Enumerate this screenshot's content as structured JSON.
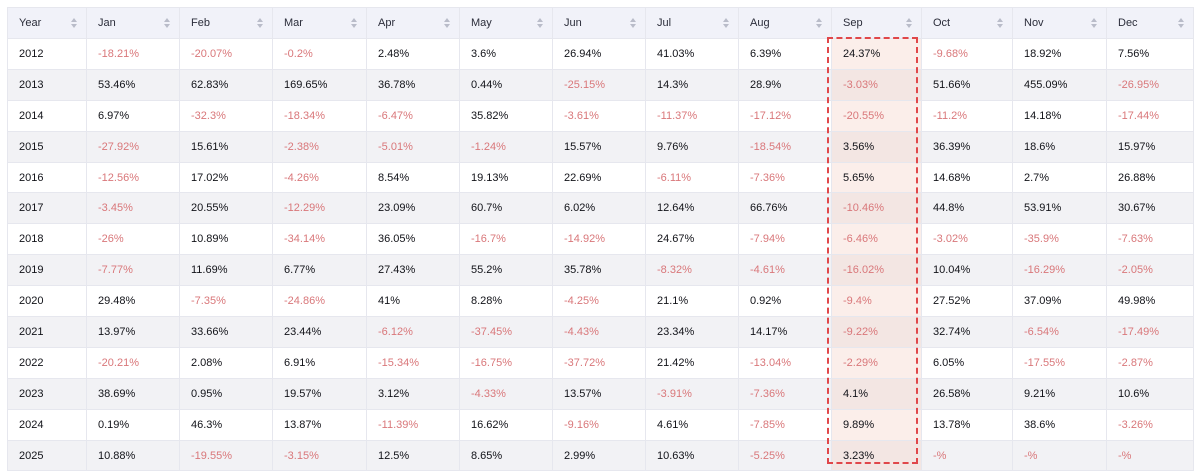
{
  "table": {
    "columns": [
      "Year",
      "Jan",
      "Feb",
      "Mar",
      "Apr",
      "May",
      "Jun",
      "Jul",
      "Aug",
      "Sep",
      "Oct",
      "Nov",
      "Dec"
    ],
    "highlighted_column": "Sep",
    "colors": {
      "negative": "#d9777a",
      "positive": "#111218",
      "highlight_border": "#e0474a",
      "highlight_fill": "#fbeeea"
    },
    "rows": [
      [
        "2012",
        "-18.21%",
        "-20.07%",
        "-0.2%",
        "2.48%",
        "3.6%",
        "26.94%",
        "41.03%",
        "6.39%",
        "24.37%",
        "-9.68%",
        "18.92%",
        "7.56%"
      ],
      [
        "2013",
        "53.46%",
        "62.83%",
        "169.65%",
        "36.78%",
        "0.44%",
        "-25.15%",
        "14.3%",
        "28.9%",
        "-3.03%",
        "51.66%",
        "455.09%",
        "-26.95%"
      ],
      [
        "2014",
        "6.97%",
        "-32.3%",
        "-18.34%",
        "-6.47%",
        "35.82%",
        "-3.61%",
        "-11.37%",
        "-17.12%",
        "-20.55%",
        "-11.2%",
        "14.18%",
        "-17.44%"
      ],
      [
        "2015",
        "-27.92%",
        "15.61%",
        "-2.38%",
        "-5.01%",
        "-1.24%",
        "15.57%",
        "9.76%",
        "-18.54%",
        "3.56%",
        "36.39%",
        "18.6%",
        "15.97%"
      ],
      [
        "2016",
        "-12.56%",
        "17.02%",
        "-4.26%",
        "8.54%",
        "19.13%",
        "22.69%",
        "-6.11%",
        "-7.36%",
        "5.65%",
        "14.68%",
        "2.7%",
        "26.88%"
      ],
      [
        "2017",
        "-3.45%",
        "20.55%",
        "-12.29%",
        "23.09%",
        "60.7%",
        "6.02%",
        "12.64%",
        "66.76%",
        "-10.46%",
        "44.8%",
        "53.91%",
        "30.67%"
      ],
      [
        "2018",
        "-26%",
        "10.89%",
        "-34.14%",
        "36.05%",
        "-16.7%",
        "-14.92%",
        "24.67%",
        "-7.94%",
        "-6.46%",
        "-3.02%",
        "-35.9%",
        "-7.63%"
      ],
      [
        "2019",
        "-7.77%",
        "11.69%",
        "6.77%",
        "27.43%",
        "55.2%",
        "35.78%",
        "-8.32%",
        "-4.61%",
        "-16.02%",
        "10.04%",
        "-16.29%",
        "-2.05%"
      ],
      [
        "2020",
        "29.48%",
        "-7.35%",
        "-24.86%",
        "41%",
        "8.28%",
        "-4.25%",
        "21.1%",
        "0.92%",
        "-9.4%",
        "27.52%",
        "37.09%",
        "49.98%"
      ],
      [
        "2021",
        "13.97%",
        "33.66%",
        "23.44%",
        "-6.12%",
        "-37.45%",
        "-4.43%",
        "23.34%",
        "14.17%",
        "-9.22%",
        "32.74%",
        "-6.54%",
        "-17.49%"
      ],
      [
        "2022",
        "-20.21%",
        "2.08%",
        "6.91%",
        "-15.34%",
        "-16.75%",
        "-37.72%",
        "21.42%",
        "-13.04%",
        "-2.29%",
        "6.05%",
        "-17.55%",
        "-2.87%"
      ],
      [
        "2023",
        "38.69%",
        "0.95%",
        "19.57%",
        "3.12%",
        "-4.33%",
        "13.57%",
        "-3.91%",
        "-7.36%",
        "4.1%",
        "26.58%",
        "9.21%",
        "10.6%"
      ],
      [
        "2024",
        "0.19%",
        "46.3%",
        "13.87%",
        "-11.39%",
        "16.62%",
        "-9.16%",
        "4.61%",
        "-7.85%",
        "9.89%",
        "13.78%",
        "38.6%",
        "-3.26%"
      ],
      [
        "2025",
        "10.88%",
        "-19.55%",
        "-3.15%",
        "12.5%",
        "8.65%",
        "2.99%",
        "10.63%",
        "-5.25%",
        "3.23%",
        "-%",
        "-%",
        "-%"
      ]
    ]
  }
}
